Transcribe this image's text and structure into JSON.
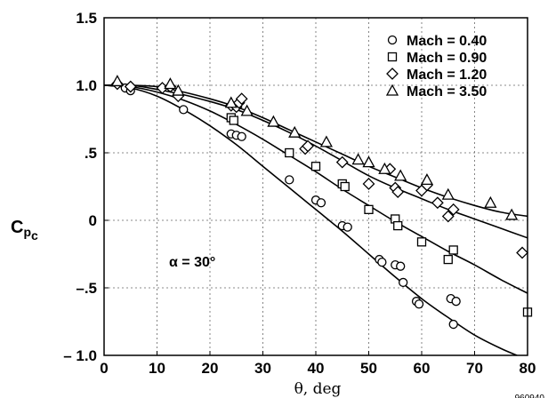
{
  "chart_data": {
    "type": "scatter",
    "xlabel": "θ, deg",
    "ylabel": "C",
    "ylabel_sub1": "p",
    "ylabel_sub2": "c",
    "xlim": [
      0,
      80
    ],
    "ylim": [
      -1.0,
      1.5
    ],
    "x_ticks": [
      0,
      10,
      20,
      30,
      40,
      50,
      60,
      70,
      80
    ],
    "x_tick_labels": [
      "0",
      "10",
      "20",
      "30",
      "40",
      "50",
      "60",
      "70",
      "80"
    ],
    "y_ticks": [
      -1.0,
      -0.5,
      0,
      0.5,
      1.0,
      1.5
    ],
    "y_tick_labels": [
      "– 1.0",
      "–.5",
      "0",
      ".5",
      "1.0",
      "1.5"
    ],
    "grid": true,
    "legend_position": "top-right",
    "annotation": "α = 30°",
    "footnote": "960940",
    "series": [
      {
        "name": "Mach = 0.40",
        "marker": "circle",
        "points": [
          [
            4,
            0.98
          ],
          [
            5,
            0.96
          ],
          [
            15,
            0.82
          ],
          [
            24,
            0.64
          ],
          [
            25,
            0.63
          ],
          [
            26,
            0.62
          ],
          [
            35,
            0.3
          ],
          [
            40,
            0.15
          ],
          [
            41,
            0.13
          ],
          [
            45,
            -0.04
          ],
          [
            46,
            -0.05
          ],
          [
            52,
            -0.29
          ],
          [
            52.5,
            -0.31
          ],
          [
            55,
            -0.33
          ],
          [
            56,
            -0.34
          ],
          [
            56.5,
            -0.46
          ],
          [
            59,
            -0.6
          ],
          [
            59.5,
            -0.62
          ],
          [
            65.5,
            -0.58
          ],
          [
            66.5,
            -0.6
          ],
          [
            66,
            -0.77
          ]
        ],
        "curve": [
          [
            0,
            1.0
          ],
          [
            5,
            0.98
          ],
          [
            10,
            0.92
          ],
          [
            15,
            0.82
          ],
          [
            20,
            0.7
          ],
          [
            25,
            0.56
          ],
          [
            30,
            0.4
          ],
          [
            35,
            0.24
          ],
          [
            40,
            0.08
          ],
          [
            45,
            -0.08
          ],
          [
            50,
            -0.25
          ],
          [
            55,
            -0.42
          ],
          [
            60,
            -0.58
          ],
          [
            65,
            -0.72
          ],
          [
            70,
            -0.85
          ],
          [
            75,
            -0.95
          ],
          [
            78,
            -1.0
          ]
        ]
      },
      {
        "name": "Mach = 0.90",
        "marker": "square",
        "points": [
          [
            24,
            0.76
          ],
          [
            24.5,
            0.74
          ],
          [
            35,
            0.5
          ],
          [
            40,
            0.4
          ],
          [
            45,
            0.27
          ],
          [
            45.5,
            0.25
          ],
          [
            50,
            0.08
          ],
          [
            55,
            0.01
          ],
          [
            55.5,
            -0.04
          ],
          [
            60,
            -0.16
          ],
          [
            65,
            -0.29
          ],
          [
            66,
            -0.22
          ],
          [
            80,
            -0.68
          ]
        ],
        "curve": [
          [
            0,
            1.0
          ],
          [
            5,
            0.99
          ],
          [
            10,
            0.95
          ],
          [
            15,
            0.89
          ],
          [
            20,
            0.81
          ],
          [
            25,
            0.71
          ],
          [
            30,
            0.6
          ],
          [
            35,
            0.48
          ],
          [
            40,
            0.36
          ],
          [
            45,
            0.23
          ],
          [
            50,
            0.11
          ],
          [
            55,
            -0.01
          ],
          [
            60,
            -0.12
          ],
          [
            65,
            -0.23
          ],
          [
            70,
            -0.33
          ],
          [
            75,
            -0.44
          ],
          [
            80,
            -0.54
          ]
        ]
      },
      {
        "name": "Mach = 1.20",
        "marker": "diamond",
        "points": [
          [
            2.5,
            1.01
          ],
          [
            5,
            0.99
          ],
          [
            11,
            0.98
          ],
          [
            12.5,
            0.99
          ],
          [
            14,
            0.92
          ],
          [
            24,
            0.85
          ],
          [
            25,
            0.84
          ],
          [
            25.5,
            0.87
          ],
          [
            26,
            0.9
          ],
          [
            38,
            0.53
          ],
          [
            38.5,
            0.55
          ],
          [
            45,
            0.43
          ],
          [
            50,
            0.27
          ],
          [
            54,
            0.38
          ],
          [
            55,
            0.24
          ],
          [
            55.5,
            0.21
          ],
          [
            60,
            0.22
          ],
          [
            61,
            0.26
          ],
          [
            63,
            0.13
          ],
          [
            65,
            0.03
          ],
          [
            66,
            0.08
          ],
          [
            79,
            -0.24
          ]
        ],
        "curve": [
          [
            0,
            1.0
          ],
          [
            5,
            1.0
          ],
          [
            10,
            0.97
          ],
          [
            15,
            0.93
          ],
          [
            20,
            0.88
          ],
          [
            25,
            0.82
          ],
          [
            30,
            0.74
          ],
          [
            35,
            0.65
          ],
          [
            40,
            0.55
          ],
          [
            45,
            0.44
          ],
          [
            50,
            0.33
          ],
          [
            55,
            0.24
          ],
          [
            60,
            0.16
          ],
          [
            65,
            0.08
          ],
          [
            70,
            0.01
          ],
          [
            75,
            -0.06
          ],
          [
            80,
            -0.13
          ]
        ]
      },
      {
        "name": "Mach = 3.50",
        "marker": "triangle",
        "points": [
          [
            2.5,
            1.03
          ],
          [
            12.5,
            1.01
          ],
          [
            14,
            0.96
          ],
          [
            24,
            0.87
          ],
          [
            27,
            0.81
          ],
          [
            32,
            0.73
          ],
          [
            36,
            0.65
          ],
          [
            42,
            0.58
          ],
          [
            48,
            0.45
          ],
          [
            50,
            0.43
          ],
          [
            53,
            0.38
          ],
          [
            56,
            0.33
          ],
          [
            61,
            0.3
          ],
          [
            65,
            0.19
          ],
          [
            73,
            0.13
          ],
          [
            77,
            0.04
          ]
        ],
        "curve": [
          [
            0,
            1.0
          ],
          [
            5,
            1.0
          ],
          [
            10,
            0.99
          ],
          [
            15,
            0.95
          ],
          [
            20,
            0.9
          ],
          [
            25,
            0.84
          ],
          [
            30,
            0.76
          ],
          [
            35,
            0.67
          ],
          [
            40,
            0.58
          ],
          [
            45,
            0.49
          ],
          [
            50,
            0.4
          ],
          [
            55,
            0.32
          ],
          [
            60,
            0.24
          ],
          [
            65,
            0.17
          ],
          [
            70,
            0.11
          ],
          [
            75,
            0.06
          ],
          [
            80,
            0.03
          ]
        ]
      }
    ]
  }
}
